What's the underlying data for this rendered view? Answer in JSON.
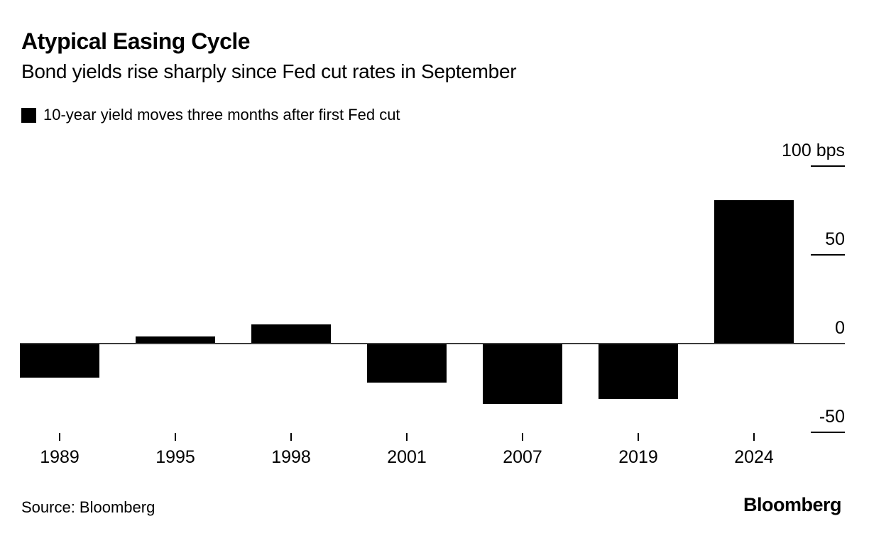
{
  "header": {
    "title": "Atypical Easing Cycle",
    "subtitle": "Bond yields rise sharply since Fed cut rates in September"
  },
  "legend": {
    "swatch_color": "#000000",
    "label": "10-year yield moves three months after first Fed cut"
  },
  "chart_data": {
    "type": "bar",
    "title": "Atypical Easing Cycle",
    "subtitle": "Bond yields rise sharply since Fed cut rates in September",
    "series_name": "10-year yield moves three months after first Fed cut",
    "categories": [
      "1989",
      "1995",
      "1998",
      "2001",
      "2007",
      "2019",
      "2024"
    ],
    "values": [
      -19,
      4,
      11,
      -22,
      -34,
      -31,
      81
    ],
    "unit": "bps",
    "xlabel": "",
    "ylabel": "bps",
    "ylim": [
      -50,
      100
    ],
    "y_ticks": [
      {
        "label": "100 bps",
        "value": 100
      },
      {
        "label": "50",
        "value": 50
      },
      {
        "label": "0",
        "value": 0
      },
      {
        "label": "-50",
        "value": -50
      }
    ],
    "bar_color": "#000000",
    "background_color": "#ffffff",
    "grid": "off",
    "axis_tick_side": "right",
    "legend_position": "top-left"
  },
  "footer": {
    "source": "Source: Bloomberg",
    "logo": "Bloomberg"
  }
}
